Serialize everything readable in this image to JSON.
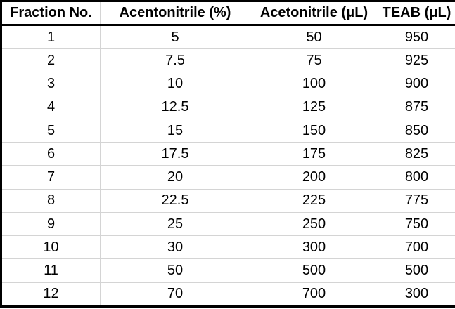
{
  "chart_data": {
    "type": "table",
    "title": "",
    "columns": [
      "Fraction No.",
      "Acentonitrile (%)",
      "Acetonitrile (μL)",
      "TEAB (μL)"
    ],
    "rows": [
      [
        "1",
        "5",
        "50",
        "950"
      ],
      [
        "2",
        "7.5",
        "75",
        "925"
      ],
      [
        "3",
        "10",
        "100",
        "900"
      ],
      [
        "4",
        "12.5",
        "125",
        "875"
      ],
      [
        "5",
        "15",
        "150",
        "850"
      ],
      [
        "6",
        "17.5",
        "175",
        "825"
      ],
      [
        "7",
        "20",
        "200",
        "800"
      ],
      [
        "8",
        "22.5",
        "225",
        "775"
      ],
      [
        "9",
        "25",
        "250",
        "750"
      ],
      [
        "10",
        "30",
        "300",
        "700"
      ],
      [
        "11",
        "50",
        "500",
        "500"
      ],
      [
        "12",
        "70",
        "700",
        "300"
      ]
    ]
  },
  "colors": {
    "text": "#000000",
    "outer_border": "#000000",
    "gridline": "#d4d4d4",
    "background": "#ffffff"
  }
}
